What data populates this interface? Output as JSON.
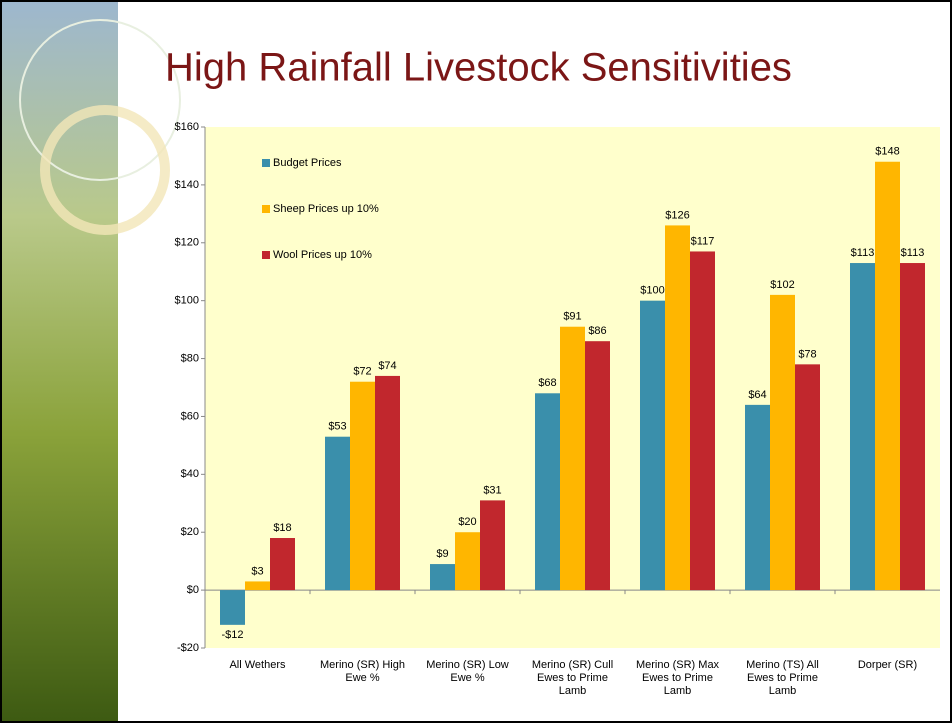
{
  "chart_data": {
    "type": "bar",
    "title": "High Rainfall Livestock Sensitivities",
    "categories": [
      "All Wethers",
      "Merino (SR) High Ewe %",
      "Merino (SR) Low Ewe %",
      "Merino (SR) Cull Ewes to Prime Lamb",
      "Merino (SR) Max Ewes to Prime Lamb",
      "Merino (TS) All Ewes to Prime Lamb",
      "Dorper (SR)"
    ],
    "series": [
      {
        "name": "Budget Prices",
        "color": "#3a8fab",
        "values": [
          -12,
          53,
          9,
          68,
          100,
          64,
          113
        ],
        "value_labels": [
          "-$12",
          "$53",
          "$9",
          "$68",
          "$100",
          "$64",
          "$113"
        ]
      },
      {
        "name": "Sheep Prices up 10%",
        "color": "#ffb600",
        "values": [
          3,
          72,
          20,
          91,
          126,
          102,
          148
        ],
        "value_labels": [
          "$3",
          "$72",
          "$20",
          "$91",
          "$126",
          "$102",
          "$148"
        ]
      },
      {
        "name": "Wool Prices up 10%",
        "color": "#c1272d",
        "values": [
          18,
          74,
          31,
          86,
          117,
          78,
          113
        ],
        "value_labels": [
          "$18",
          "$74",
          "$31",
          "$86",
          "$117",
          "$78",
          "$113"
        ]
      }
    ],
    "ylim": [
      -20,
      160
    ],
    "yticks": [
      {
        "value": -20,
        "label": "-$20"
      },
      {
        "value": 0,
        "label": "$0"
      },
      {
        "value": 20,
        "label": "$20"
      },
      {
        "value": 40,
        "label": "$40"
      },
      {
        "value": 60,
        "label": "$60"
      },
      {
        "value": 80,
        "label": "$80"
      },
      {
        "value": 100,
        "label": "$100"
      },
      {
        "value": 120,
        "label": "$120"
      },
      {
        "value": 140,
        "label": "$140"
      },
      {
        "value": 160,
        "label": "$160"
      }
    ],
    "legend": "upper-left"
  }
}
